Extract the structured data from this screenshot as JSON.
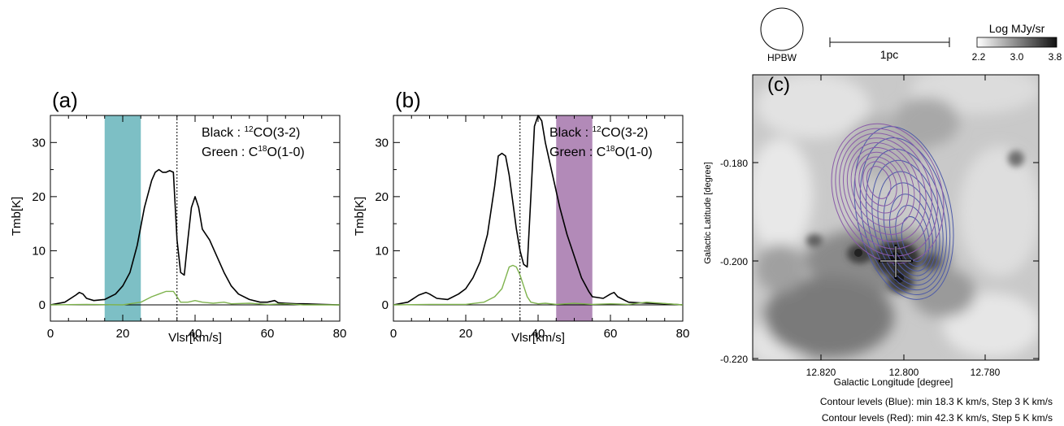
{
  "chart_data": [
    {
      "type": "line",
      "panel_label": "(a)",
      "xlabel": "Vlsr[km/s]",
      "ylabel": "Tmb[K]",
      "xlim": [
        0,
        80
      ],
      "ylim": [
        -3,
        35
      ],
      "xticks": [
        0,
        20,
        40,
        60,
        80
      ],
      "yticks": [
        0,
        10,
        20,
        30
      ],
      "legend": [
        {
          "prefix": "Black : ",
          "sup": "12",
          "rest": "CO(3-2)"
        },
        {
          "prefix": "Green : C",
          "sup": "18",
          "rest": "O(1-0)"
        }
      ],
      "shaded_band": {
        "x0": 15,
        "x1": 25,
        "color": "#7dbfc5"
      },
      "vline": 35,
      "series": [
        {
          "color": "#000000",
          "x": [
            0,
            4,
            7,
            8,
            9,
            10,
            12,
            15,
            18,
            20,
            22,
            24,
            26,
            28,
            29,
            30,
            31,
            32,
            33,
            34,
            35,
            36,
            37,
            38,
            39,
            40,
            41,
            42,
            44,
            46,
            48,
            50,
            52,
            55,
            58,
            60,
            62,
            63,
            65,
            68,
            70,
            75,
            80
          ],
          "y": [
            0,
            0.5,
            1.8,
            2.3,
            2,
            1.2,
            0.8,
            1,
            2,
            3.5,
            6,
            11,
            18,
            23,
            24.5,
            25,
            24.5,
            24.5,
            24.8,
            24.5,
            12,
            6,
            5.5,
            12,
            18,
            20,
            18,
            14,
            12,
            9,
            6,
            3.5,
            2,
            1,
            0.5,
            0.5,
            0.8,
            0.4,
            0.3,
            0.2,
            0.2,
            0.1,
            0
          ]
        },
        {
          "color": "#7fb34e",
          "x": [
            0,
            10,
            20,
            25,
            28,
            30,
            32,
            34,
            35,
            36,
            38,
            40,
            42,
            45,
            48,
            50,
            55,
            60,
            65,
            70,
            80
          ],
          "y": [
            0,
            0.1,
            0,
            0.5,
            1.5,
            2,
            2.5,
            2.5,
            1.5,
            0.5,
            0.5,
            0.8,
            0.5,
            0.3,
            0.5,
            0.2,
            0.3,
            0.1,
            0.2,
            0,
            0
          ]
        }
      ]
    },
    {
      "type": "line",
      "panel_label": "(b)",
      "xlabel": "Vlsr[km/s]",
      "ylabel": "Tmb[K]",
      "xlim": [
        0,
        80
      ],
      "ylim": [
        -3,
        35
      ],
      "xticks": [
        0,
        20,
        40,
        60,
        80
      ],
      "yticks": [
        0,
        10,
        20,
        30
      ],
      "legend": [
        {
          "prefix": "Black : ",
          "sup": "12",
          "rest": "CO(3-2)"
        },
        {
          "prefix": "Green : C",
          "sup": "18",
          "rest": "O(1-0)"
        }
      ],
      "shaded_band": {
        "x0": 45,
        "x1": 55,
        "color": "#b28ab8"
      },
      "vline": 35,
      "series": [
        {
          "color": "#000000",
          "x": [
            0,
            4,
            7,
            9,
            10,
            12,
            15,
            18,
            20,
            22,
            24,
            26,
            28,
            29,
            30,
            31,
            32,
            33,
            34,
            35,
            36,
            37,
            38,
            39,
            40,
            41,
            42,
            44,
            46,
            48,
            50,
            52,
            54,
            55,
            58,
            60,
            61,
            62,
            65,
            70,
            75,
            80
          ],
          "y": [
            0,
            0.5,
            1.8,
            2.3,
            2,
            1.2,
            1,
            2,
            3,
            5,
            8,
            13,
            22,
            27.5,
            28,
            27.5,
            24,
            19,
            14,
            10,
            7.5,
            7,
            20,
            33,
            35,
            34,
            30,
            24,
            18,
            13,
            9,
            5,
            2.5,
            1.5,
            1.2,
            2,
            2.3,
            1.5,
            0.5,
            0.3,
            0.2,
            0
          ]
        },
        {
          "color": "#7fb34e",
          "x": [
            0,
            10,
            20,
            25,
            28,
            30,
            31,
            32,
            33,
            34,
            35,
            36,
            37,
            38,
            40,
            42,
            45,
            50,
            55,
            60,
            65,
            70,
            80
          ],
          "y": [
            0,
            0.1,
            0.1,
            0.5,
            1.5,
            3,
            5,
            7,
            7.3,
            7,
            5.5,
            3.5,
            1.5,
            0.5,
            0.2,
            0.3,
            0.1,
            0.3,
            0.1,
            0.2,
            0.1,
            0.5,
            0
          ]
        }
      ]
    },
    {
      "type": "heatmap",
      "panel_label": "(c)",
      "xlabel": "Galactic Longitude [degree]",
      "ylabel": "Galactic Latitude [degree]",
      "xlim": [
        12.835,
        12.775
      ],
      "ylim": [
        -0.222,
        -0.166
      ],
      "xticks": [
        "12.820",
        "12.800",
        "12.780"
      ],
      "yticks": [
        "-0.180",
        "-0.200",
        "-0.220"
      ],
      "colorbar": {
        "label": "Log MJy/sr",
        "ticks": [
          "2.2",
          "3.0",
          "3.8"
        ],
        "range": [
          2.2,
          3.8
        ]
      },
      "beam_label": "HPBW",
      "scalebar_label": "1pc",
      "contour_note_blue": "Contour levels (Blue): min 18.3 K km/s, Step 3 K km/s",
      "contour_note_red": "Contour levels (Red): min 42.3 K km/s, Step 5 K km/s",
      "cross_position": {
        "l": 12.803,
        "b": -0.2
      },
      "blue_color": "#4d5aa8",
      "red_color": "#8a5aa8"
    }
  ]
}
